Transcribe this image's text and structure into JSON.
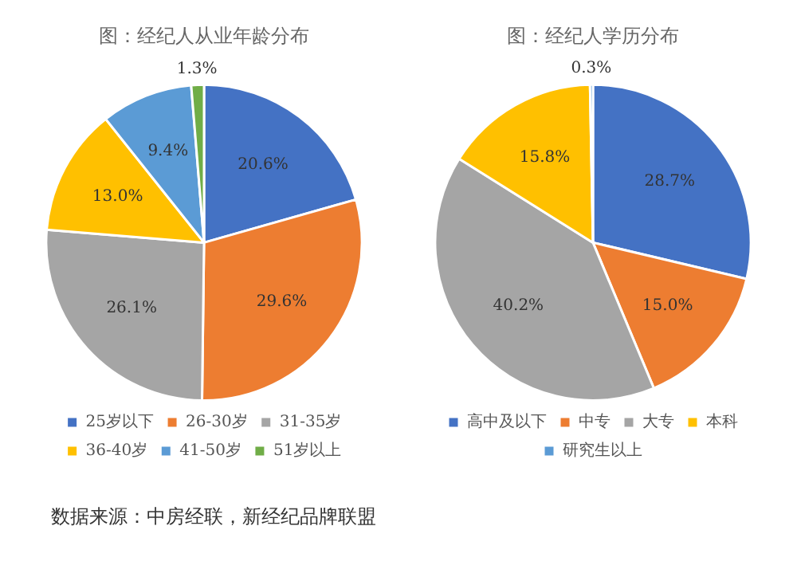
{
  "chart_data": [
    {
      "type": "pie",
      "title": "图：经纪人从业年龄分布",
      "categories": [
        "25岁以下",
        "26-30岁",
        "31-35岁",
        "36-40岁",
        "41-50岁",
        "51岁以上"
      ],
      "values": [
        20.6,
        29.6,
        26.1,
        13.0,
        9.4,
        1.3
      ],
      "colors": [
        "#4472c4",
        "#ed7d31",
        "#a5a5a5",
        "#ffc000",
        "#5b9bd5",
        "#70ad47"
      ],
      "value_labels": [
        "20.6%",
        "29.6%",
        "26.1%",
        "13.0%",
        "9.4%",
        "1.3%"
      ],
      "legend": "bottom",
      "annotations": [
        "数据来源：中房经联，新经纪品牌联盟"
      ]
    },
    {
      "type": "pie",
      "title": "图：经纪人学历分布",
      "categories": [
        "高中及以下",
        "中专",
        "大专",
        "本科",
        "研究生以上"
      ],
      "values": [
        28.7,
        15.0,
        40.2,
        15.8,
        0.3
      ],
      "colors": [
        "#4472c4",
        "#ed7d31",
        "#a5a5a5",
        "#ffc000",
        "#5b9bd5"
      ],
      "value_labels": [
        "28.7%",
        "15.0%",
        "40.2%",
        "15.8%",
        "0.3%"
      ],
      "legend": "bottom"
    }
  ]
}
